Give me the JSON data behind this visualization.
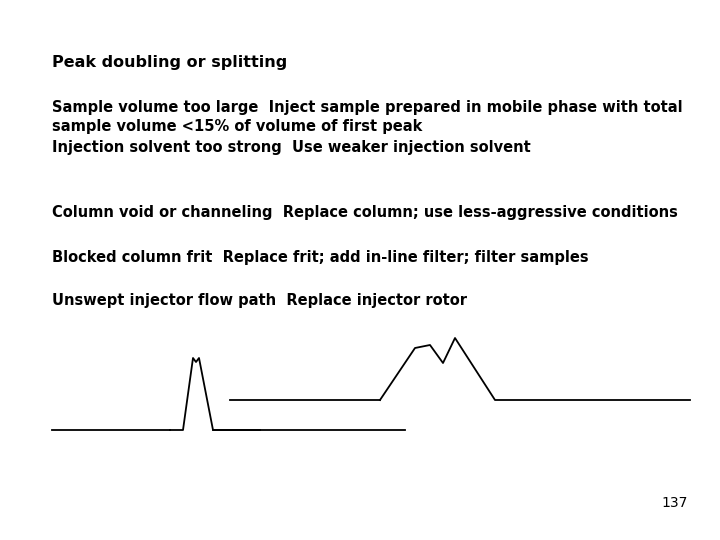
{
  "background_color": "#ffffff",
  "title": "Peak doubling or splitting",
  "lines": [
    "Sample volume too large  Inject sample prepared in mobile phase with total\nsample volume <15% of volume of first peak",
    "Injection solvent too strong  Use weaker injection solvent",
    "Column void or channeling  Replace column; use less-aggressive conditions",
    "Blocked column frit  Replace frit; add in-line filter; filter samples",
    "Unswept injector flow path  Replace injector rotor"
  ],
  "page_number": "137",
  "font_size_title": 11.5,
  "font_size_body": 10.5,
  "line_color": "#000000",
  "line_width": 1.3
}
